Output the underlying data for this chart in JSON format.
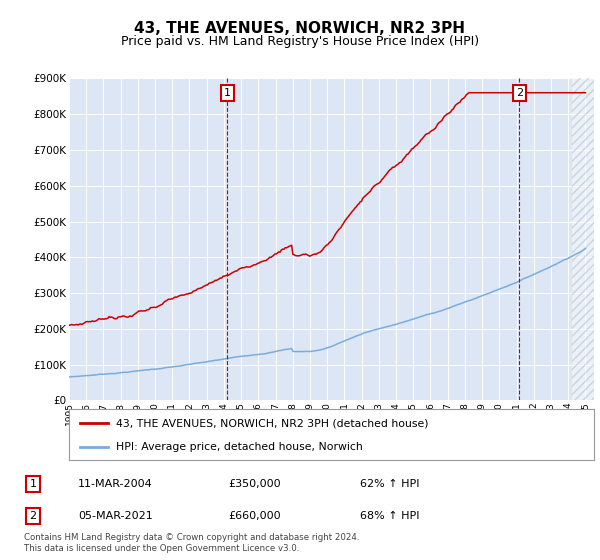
{
  "title": "43, THE AVENUES, NORWICH, NR2 3PH",
  "subtitle": "Price paid vs. HM Land Registry's House Price Index (HPI)",
  "ylim": [
    0,
    900000
  ],
  "yticks": [
    0,
    100000,
    200000,
    300000,
    400000,
    500000,
    600000,
    700000,
    800000,
    900000
  ],
  "ytick_labels": [
    "£0",
    "£100K",
    "£200K",
    "£300K",
    "£400K",
    "£500K",
    "£600K",
    "£700K",
    "£800K",
    "£900K"
  ],
  "xlim_start": 1995.0,
  "xlim_end": 2025.5,
  "xticks": [
    1995,
    1996,
    1997,
    1998,
    1999,
    2000,
    2001,
    2002,
    2003,
    2004,
    2005,
    2006,
    2007,
    2008,
    2009,
    2010,
    2011,
    2012,
    2013,
    2014,
    2015,
    2016,
    2017,
    2018,
    2019,
    2020,
    2021,
    2022,
    2023,
    2024,
    2025
  ],
  "background_color": "#dce6f5",
  "outer_bg_color": "#ffffff",
  "red_line_color": "#cc0000",
  "blue_line_color": "#7aaddc",
  "annotation_box_color": "#cc0000",
  "hatch_start": 2024.25,
  "marker1_x": 2004.19,
  "marker1_label": "1",
  "marker2_x": 2021.17,
  "marker2_label": "2",
  "legend_red_label": "43, THE AVENUES, NORWICH, NR2 3PH (detached house)",
  "legend_blue_label": "HPI: Average price, detached house, Norwich",
  "ann1_label": "1",
  "ann1_date": "11-MAR-2004",
  "ann1_price": "£350,000",
  "ann1_hpi": "62% ↑ HPI",
  "ann2_label": "2",
  "ann2_date": "05-MAR-2021",
  "ann2_price": "£660,000",
  "ann2_hpi": "68% ↑ HPI",
  "footer": "Contains HM Land Registry data © Crown copyright and database right 2024.\nThis data is licensed under the Open Government Licence v3.0.",
  "title_fontsize": 11,
  "subtitle_fontsize": 9
}
